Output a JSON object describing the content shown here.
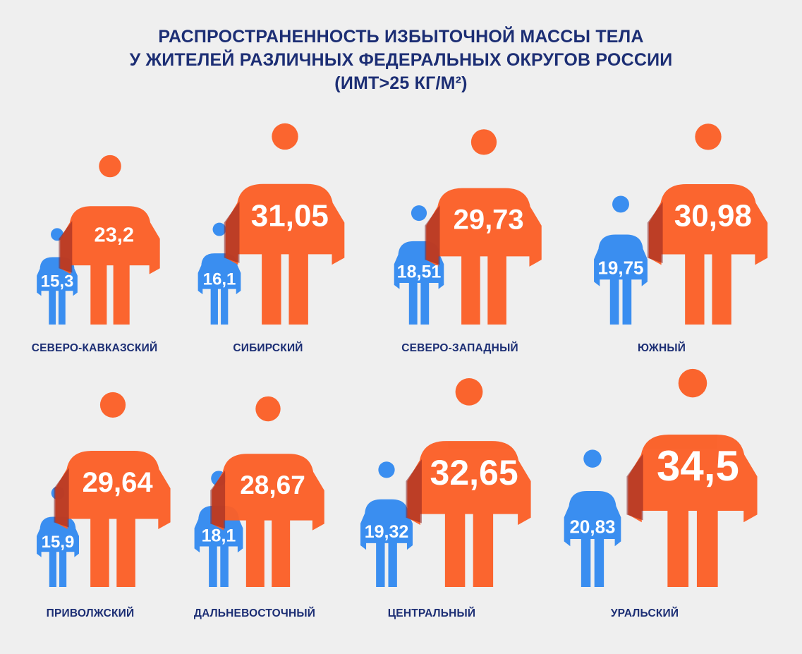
{
  "title": {
    "line1": "РАСПРОСТРАНЕННОСТЬ ИЗБЫТОЧНОЙ МАССЫ ТЕЛА",
    "line2": "У ЖИТЕЛЕЙ РАЗЛИЧНЫХ ФЕДЕРАЛЬНЫХ ОКРУГОВ РОССИИ",
    "line3": "(ИМТ>25 КГ/М²)"
  },
  "colors": {
    "blue": "#3a8ef0",
    "orange": "#fb5f26",
    "overlap": "#8a1f1f",
    "title": "#1c2e74",
    "background": "#efefef"
  },
  "chart_data": {
    "type": "pictograph",
    "categories": [
      "СЕВЕРО-КАВКАЗСКИЙ",
      "СИБИРСКИЙ",
      "СЕВЕРО-ЗАПАДНЫЙ",
      "ЮЖНЫЙ",
      "ПРИВОЛЖСКИЙ",
      "ДАЛЬНЕВОСТОЧНЫЙ",
      "ЦЕНТРАЛЬНЫЙ",
      "УРАЛЬСКИЙ"
    ],
    "series": [
      {
        "values": [
          15.3,
          16.1,
          18.51,
          19.75,
          15.9,
          18.1,
          19.32,
          20.83
        ]
      },
      {
        "values": [
          23.2,
          31.05,
          29.73,
          30.98,
          29.64,
          28.67,
          32.65,
          34.5
        ]
      }
    ],
    "value_labels": {
      "blue": [
        "15,3",
        "16,1",
        "18,51",
        "19,75",
        "15,9",
        "18,1",
        "19,32",
        "20,83"
      ],
      "orange": [
        "23,2",
        "31,05",
        "29,73",
        "30,98",
        "29,64",
        "28,67",
        "32,65",
        "34,5"
      ]
    }
  }
}
